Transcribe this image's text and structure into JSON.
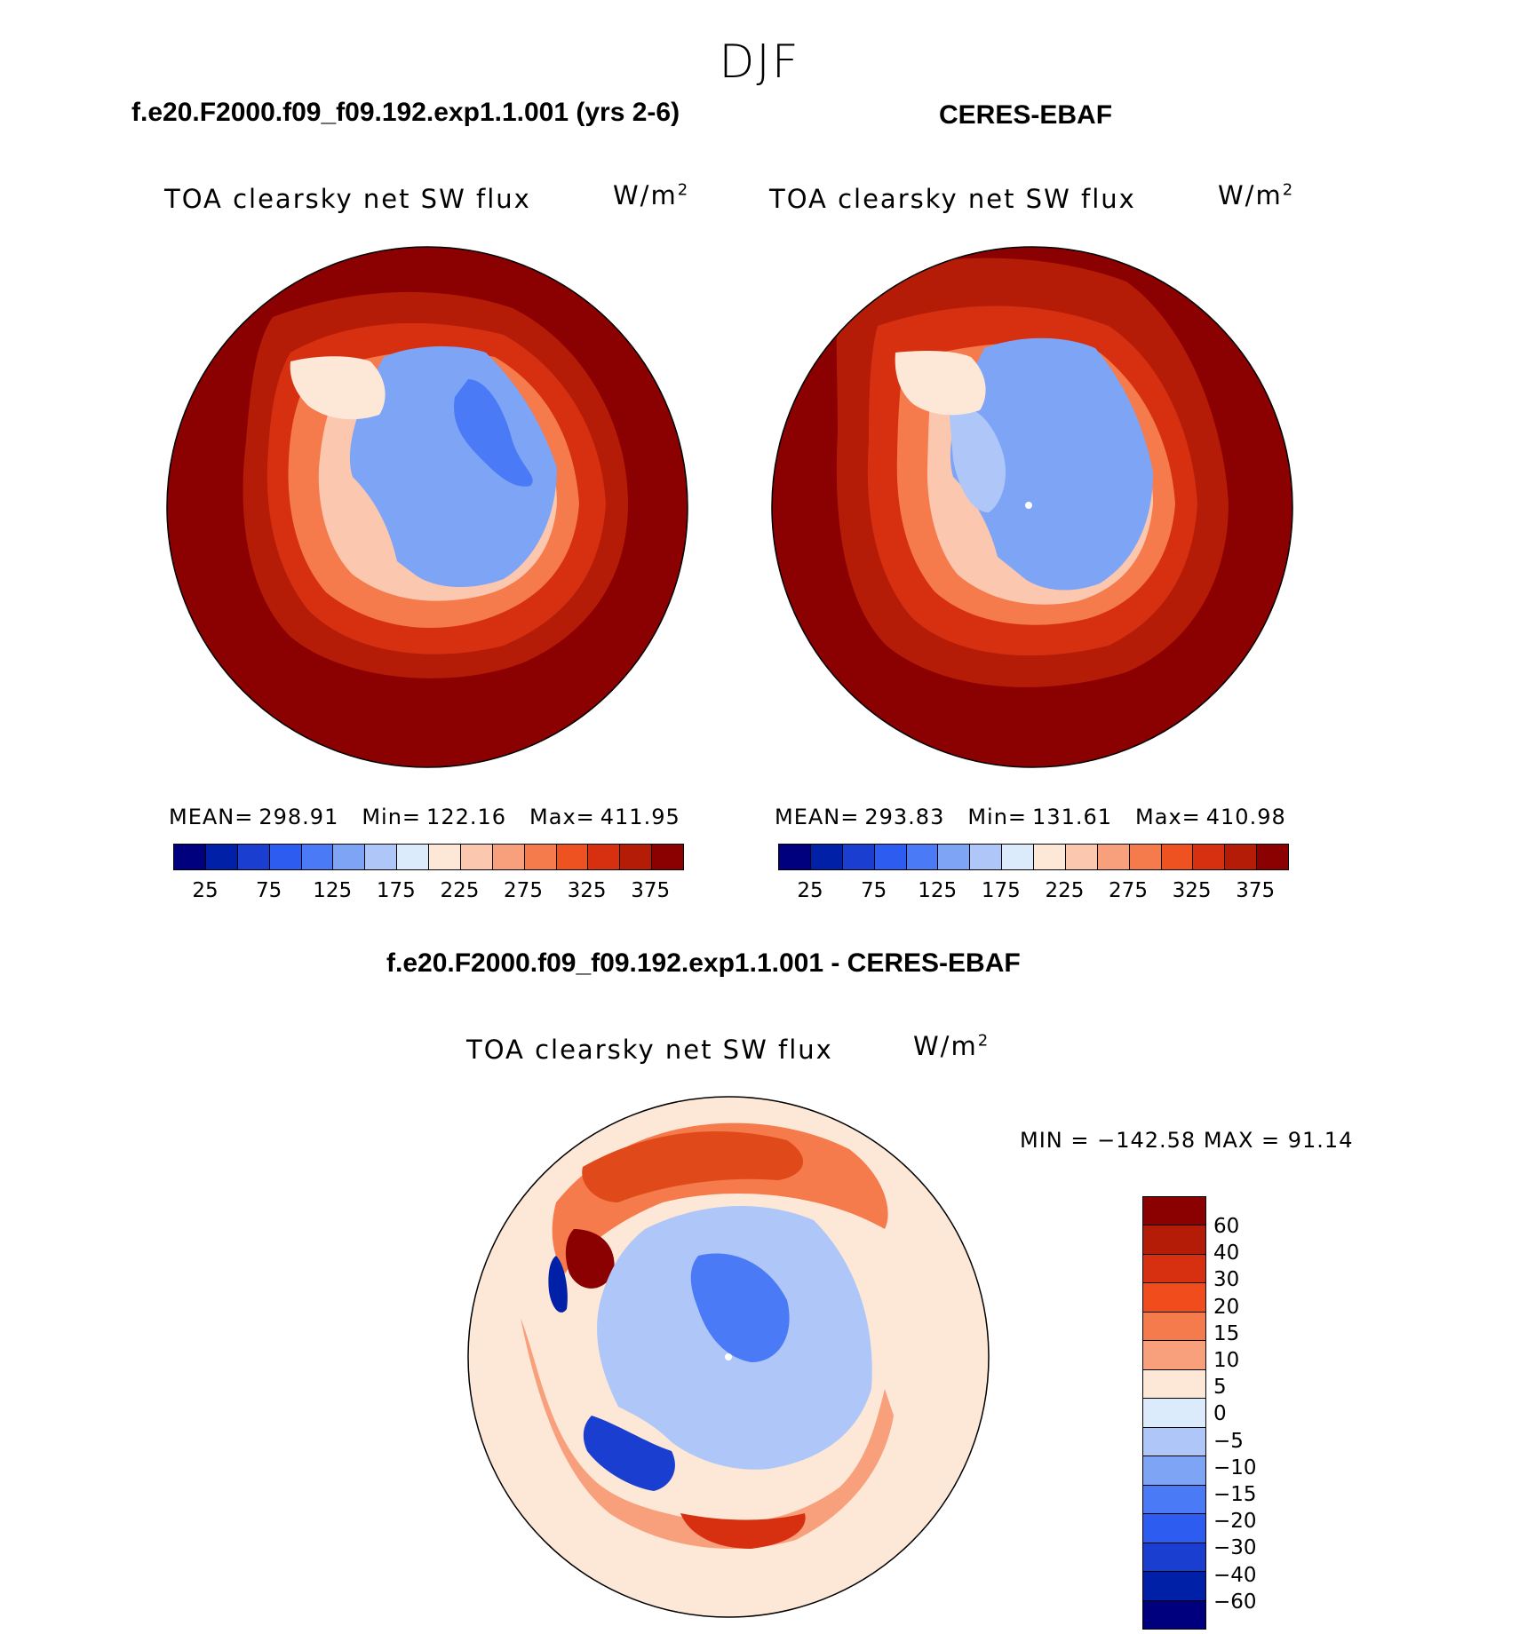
{
  "page": {
    "season": "DJF"
  },
  "panels": [
    {
      "case_title": "f.e20.F2000.f09_f09.192.exp1.1.001 (yrs 2-6)",
      "variable": "TOA clearsky net SW flux",
      "units_base": "W/m",
      "units_exp": "2",
      "stats": {
        "mean_label": "MEAN=",
        "mean": "298.91",
        "min_label": "Min=",
        "min": "122.16",
        "max_label": "Max=",
        "max": "411.95"
      }
    },
    {
      "case_title": "CERES-EBAF",
      "variable": "TOA clearsky net SW flux",
      "units_base": "W/m",
      "units_exp": "2",
      "stats": {
        "mean_label": "MEAN=",
        "mean": "293.83",
        "min_label": "Min=",
        "min": "131.61",
        "max_label": "Max=",
        "max": "410.98"
      }
    }
  ],
  "diff_panel": {
    "case_title": "f.e20.F2000.f09_f09.192.exp1.1.001 - CERES-EBAF",
    "variable": "TOA clearsky net SW flux",
    "units_base": "W/m",
    "units_exp": "2",
    "minmax_text": "MIN = −142.58 MAX =   91.14"
  },
  "abs_colorbar": {
    "colors": [
      "#00007f",
      "#0020a8",
      "#1a3fd0",
      "#2c5cf0",
      "#4a7af6",
      "#7ea4f6",
      "#aec7f8",
      "#dcebfb",
      "#fde8d8",
      "#fbc7ae",
      "#f8a07c",
      "#f57a4c",
      "#ee5221",
      "#d63010",
      "#b41c08",
      "#8b0000"
    ],
    "tick_labels": [
      "25",
      "75",
      "125",
      "175",
      "225",
      "275",
      "325",
      "375"
    ]
  },
  "diff_colorbar": {
    "colors": [
      "#8b0000",
      "#b41c08",
      "#d63010",
      "#f04c1c",
      "#f57a4c",
      "#f8a07c",
      "#fde8d8",
      "#dcebfb",
      "#aec7f8",
      "#7ea4f6",
      "#4a7af6",
      "#2c5cf0",
      "#1a3fd0",
      "#0020a8",
      "#00007f"
    ],
    "tick_labels": [
      "60",
      "40",
      "30",
      "20",
      "15",
      "10",
      "5",
      "0",
      "−5",
      "−10",
      "−15",
      "−20",
      "−30",
      "−40",
      "−60"
    ]
  }
}
